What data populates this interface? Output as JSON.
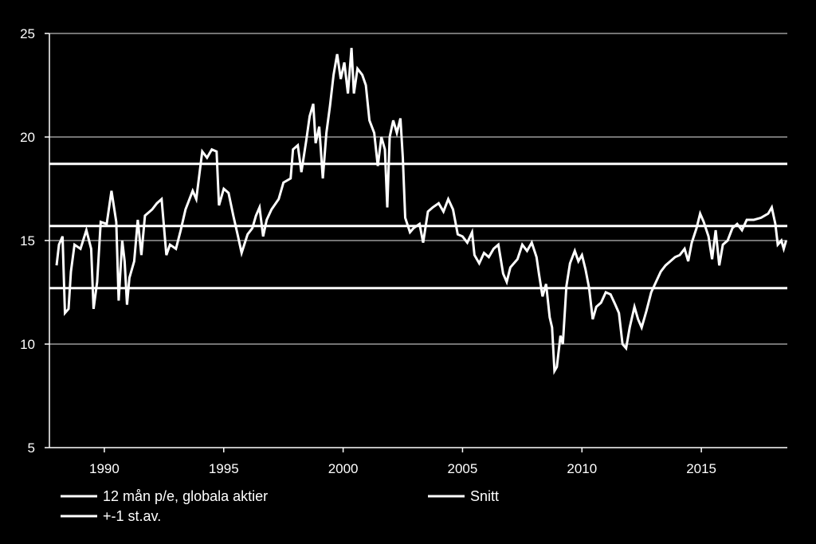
{
  "chart_data": {
    "type": "line",
    "title": "",
    "xlabel": "",
    "ylabel": "",
    "xlim": [
      1987.7,
      2018.6
    ],
    "ylim": [
      5,
      25
    ],
    "x_ticks": [
      1990,
      1995,
      2000,
      2005,
      2010,
      2015
    ],
    "x_tick_labels": [
      "1990",
      "1995",
      "2000",
      "2005",
      "2010",
      "2015"
    ],
    "y_ticks": [
      5,
      10,
      15,
      20,
      25
    ],
    "y_tick_labels": [
      "5",
      "10",
      "15",
      "20",
      "25"
    ],
    "grid": "horizontal",
    "legend_position": "bottom",
    "colors": {
      "background": "#000000",
      "line": "#ffffff",
      "grid": "#9a9a9a",
      "axis": "#ffffff"
    },
    "series": [
      {
        "name": "12 mån p/e, globala aktier",
        "points": [
          [
            1988.0,
            13.8
          ],
          [
            1988.1,
            14.8
          ],
          [
            1988.25,
            15.2
          ],
          [
            1988.35,
            11.5
          ],
          [
            1988.5,
            11.7
          ],
          [
            1988.6,
            13.5
          ],
          [
            1988.75,
            14.8
          ],
          [
            1989.0,
            14.6
          ],
          [
            1989.25,
            15.5
          ],
          [
            1989.45,
            14.6
          ],
          [
            1989.55,
            11.7
          ],
          [
            1989.7,
            13.0
          ],
          [
            1989.85,
            15.9
          ],
          [
            1990.1,
            15.8
          ],
          [
            1990.3,
            17.4
          ],
          [
            1990.5,
            15.9
          ],
          [
            1990.6,
            12.1
          ],
          [
            1990.75,
            15.0
          ],
          [
            1990.85,
            14.0
          ],
          [
            1990.95,
            11.9
          ],
          [
            1991.05,
            13.2
          ],
          [
            1991.25,
            14.0
          ],
          [
            1991.4,
            16.0
          ],
          [
            1991.55,
            14.3
          ],
          [
            1991.7,
            16.2
          ],
          [
            1992.0,
            16.5
          ],
          [
            1992.2,
            16.8
          ],
          [
            1992.4,
            17.0
          ],
          [
            1992.6,
            14.3
          ],
          [
            1992.75,
            14.8
          ],
          [
            1993.0,
            14.6
          ],
          [
            1993.2,
            15.5
          ],
          [
            1993.4,
            16.5
          ],
          [
            1993.7,
            17.4
          ],
          [
            1993.85,
            17.0
          ],
          [
            1994.1,
            19.3
          ],
          [
            1994.3,
            19.0
          ],
          [
            1994.5,
            19.4
          ],
          [
            1994.7,
            19.3
          ],
          [
            1994.8,
            16.7
          ],
          [
            1995.0,
            17.5
          ],
          [
            1995.2,
            17.3
          ],
          [
            1995.4,
            16.2
          ],
          [
            1995.6,
            15.2
          ],
          [
            1995.75,
            14.4
          ],
          [
            1996.0,
            15.3
          ],
          [
            1996.2,
            15.6
          ],
          [
            1996.35,
            16.2
          ],
          [
            1996.5,
            16.6
          ],
          [
            1996.65,
            15.2
          ],
          [
            1996.8,
            16.0
          ],
          [
            1997.0,
            16.5
          ],
          [
            1997.3,
            17.0
          ],
          [
            1997.5,
            17.8
          ],
          [
            1997.8,
            18.0
          ],
          [
            1997.9,
            19.4
          ],
          [
            1998.1,
            19.6
          ],
          [
            1998.25,
            18.3
          ],
          [
            1998.45,
            19.8
          ],
          [
            1998.6,
            21.0
          ],
          [
            1998.75,
            21.6
          ],
          [
            1998.85,
            19.7
          ],
          [
            1999.0,
            20.5
          ],
          [
            1999.15,
            18.0
          ],
          [
            1999.3,
            20.2
          ],
          [
            1999.45,
            21.5
          ],
          [
            1999.6,
            23.0
          ],
          [
            1999.75,
            24.0
          ],
          [
            1999.9,
            22.8
          ],
          [
            2000.05,
            23.6
          ],
          [
            2000.2,
            22.1
          ],
          [
            2000.35,
            24.3
          ],
          [
            2000.45,
            22.1
          ],
          [
            2000.6,
            23.3
          ],
          [
            2000.8,
            23.0
          ],
          [
            2000.95,
            22.5
          ],
          [
            2001.1,
            20.8
          ],
          [
            2001.3,
            20.2
          ],
          [
            2001.45,
            18.6
          ],
          [
            2001.6,
            20.0
          ],
          [
            2001.75,
            19.4
          ],
          [
            2001.85,
            16.6
          ],
          [
            2001.95,
            20.0
          ],
          [
            2002.1,
            20.8
          ],
          [
            2002.25,
            20.2
          ],
          [
            2002.4,
            20.9
          ],
          [
            2002.5,
            19.0
          ],
          [
            2002.6,
            16.1
          ],
          [
            2002.8,
            15.4
          ],
          [
            2002.95,
            15.6
          ],
          [
            2003.2,
            15.8
          ],
          [
            2003.35,
            14.9
          ],
          [
            2003.55,
            16.4
          ],
          [
            2003.75,
            16.6
          ],
          [
            2004.0,
            16.8
          ],
          [
            2004.2,
            16.4
          ],
          [
            2004.4,
            17.0
          ],
          [
            2004.6,
            16.5
          ],
          [
            2004.8,
            15.3
          ],
          [
            2005.0,
            15.2
          ],
          [
            2005.2,
            14.9
          ],
          [
            2005.4,
            15.4
          ],
          [
            2005.5,
            14.3
          ],
          [
            2005.7,
            13.9
          ],
          [
            2005.9,
            14.4
          ],
          [
            2006.1,
            14.2
          ],
          [
            2006.3,
            14.6
          ],
          [
            2006.5,
            14.8
          ],
          [
            2006.7,
            13.4
          ],
          [
            2006.85,
            13.0
          ],
          [
            2007.0,
            13.7
          ],
          [
            2007.3,
            14.1
          ],
          [
            2007.5,
            14.8
          ],
          [
            2007.7,
            14.5
          ],
          [
            2007.9,
            14.9
          ],
          [
            2008.1,
            14.2
          ],
          [
            2008.2,
            13.4
          ],
          [
            2008.35,
            12.3
          ],
          [
            2008.5,
            12.9
          ],
          [
            2008.65,
            11.3
          ],
          [
            2008.75,
            10.8
          ],
          [
            2008.85,
            8.7
          ],
          [
            2008.95,
            8.9
          ],
          [
            2009.1,
            10.4
          ],
          [
            2009.2,
            10.0
          ],
          [
            2009.35,
            12.8
          ],
          [
            2009.5,
            13.9
          ],
          [
            2009.7,
            14.5
          ],
          [
            2009.85,
            14.0
          ],
          [
            2010.0,
            14.3
          ],
          [
            2010.15,
            13.6
          ],
          [
            2010.3,
            12.7
          ],
          [
            2010.45,
            11.2
          ],
          [
            2010.6,
            11.8
          ],
          [
            2010.8,
            12.0
          ],
          [
            2011.0,
            12.5
          ],
          [
            2011.2,
            12.4
          ],
          [
            2011.4,
            11.9
          ],
          [
            2011.55,
            11.5
          ],
          [
            2011.7,
            10.0
          ],
          [
            2011.85,
            9.8
          ],
          [
            2012.0,
            10.8
          ],
          [
            2012.2,
            11.8
          ],
          [
            2012.35,
            11.2
          ],
          [
            2012.5,
            10.8
          ],
          [
            2012.7,
            11.6
          ],
          [
            2012.9,
            12.5
          ],
          [
            2013.1,
            13.0
          ],
          [
            2013.3,
            13.5
          ],
          [
            2013.5,
            13.8
          ],
          [
            2013.7,
            14.0
          ],
          [
            2013.9,
            14.2
          ],
          [
            2014.1,
            14.3
          ],
          [
            2014.3,
            14.6
          ],
          [
            2014.45,
            14.0
          ],
          [
            2014.6,
            14.9
          ],
          [
            2014.8,
            15.6
          ],
          [
            2014.95,
            16.3
          ],
          [
            2015.1,
            15.9
          ],
          [
            2015.3,
            15.2
          ],
          [
            2015.45,
            14.1
          ],
          [
            2015.6,
            15.5
          ],
          [
            2015.75,
            13.8
          ],
          [
            2015.9,
            14.8
          ],
          [
            2016.1,
            15.0
          ],
          [
            2016.3,
            15.6
          ],
          [
            2016.5,
            15.8
          ],
          [
            2016.7,
            15.5
          ],
          [
            2016.9,
            16.0
          ],
          [
            2017.2,
            16.0
          ],
          [
            2017.5,
            16.1
          ],
          [
            2017.8,
            16.3
          ],
          [
            2017.95,
            16.6
          ],
          [
            2018.1,
            15.8
          ],
          [
            2018.2,
            14.8
          ],
          [
            2018.35,
            15.0
          ],
          [
            2018.45,
            14.6
          ],
          [
            2018.55,
            15.0
          ]
        ]
      },
      {
        "name": "Snitt",
        "value": 15.7
      },
      {
        "name": "+-1 st.av.",
        "values": [
          18.7,
          12.7
        ]
      }
    ],
    "legend": [
      {
        "label": "12 mån p/e, globala aktier"
      },
      {
        "label": "Snitt"
      },
      {
        "label": "+-1 st.av."
      }
    ]
  }
}
